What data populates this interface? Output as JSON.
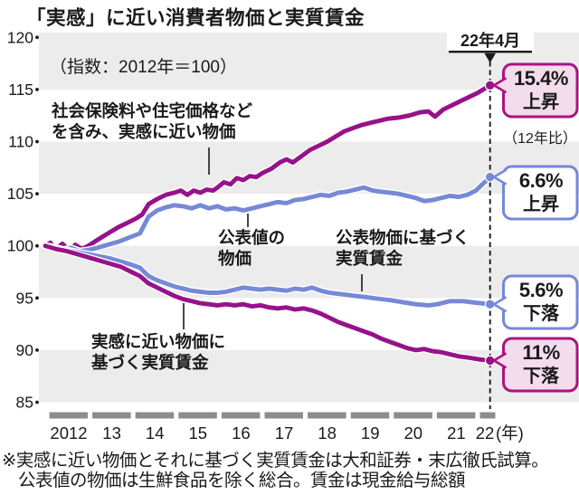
{
  "title": "「実感」に近い消費者物価と実質賃金",
  "subtitle": "（指数：2012年＝100）",
  "annotation": {
    "date_label": "22年4月",
    "compare_note": "（12年比）"
  },
  "series_labels": {
    "feel_price": {
      "line1": "社会保険料や住宅価格など",
      "line2": "を含み、実感に近い物価"
    },
    "official_price": {
      "line1": "公表値の",
      "line2": "物価"
    },
    "official_wage": {
      "line1": "公表物価に基づく",
      "line2": "実質賃金"
    },
    "feel_wage": {
      "line1": "実感に近い物価に",
      "line2": "基づく実質賃金"
    }
  },
  "callouts": [
    {
      "value": "15.4%",
      "direction": "上昇",
      "style": "pink"
    },
    {
      "value": "6.6%",
      "direction": "上昇",
      "style": "blue"
    },
    {
      "value": "5.6%",
      "direction": "下落",
      "style": "blue"
    },
    {
      "value": "11%",
      "direction": "下落",
      "style": "pink"
    }
  ],
  "footnotes": [
    "※実感に近い物価とそれに基づく実質賃金は大和証券・末広徹氏試算。",
    "公表値の物価は生鮮食品を除く総合。賃金は現金給与総額"
  ],
  "colors": {
    "magenta": "#97128a",
    "magenta_border": "#ab1480",
    "blue": "#7589d6",
    "pink_fill": "#f3dcec",
    "band_gray": "#edecec",
    "bar_gray": "#8c8c8c",
    "ink": "#1a1a1a"
  },
  "chart_data": {
    "type": "line",
    "title": "「実感」に近い消費者物価と実質賃金",
    "index_note": "指数：2012年＝100",
    "x_axis": {
      "tick_labels": [
        "2012",
        "13",
        "14",
        "15",
        "16",
        "17",
        "18",
        "19",
        "20",
        "21",
        "22"
      ],
      "unit_suffix": "(年)",
      "range_years": [
        2012,
        2022.33
      ]
    },
    "y_axis": {
      "ticks": [
        120,
        115,
        110,
        105,
        100,
        95,
        90,
        85
      ],
      "ylim": [
        85,
        120.5
      ]
    },
    "grid_bands_gray": [
      [
        115,
        120
      ],
      [
        105,
        110
      ],
      [
        95,
        100
      ],
      [
        85,
        90
      ]
    ],
    "event_line": {
      "x_year_offset": 10.33,
      "label": "22年4月"
    },
    "series": [
      {
        "id": "feel_price",
        "name": "社会保険料や住宅価格などを含み、実感に近い物価",
        "color": "magenta",
        "end_label": "15.4%上昇（12年比）",
        "points": [
          [
            0,
            100
          ],
          [
            0.12,
            100.3
          ],
          [
            0.25,
            99.7
          ],
          [
            0.4,
            100.2
          ],
          [
            0.55,
            99.6
          ],
          [
            0.7,
            100.1
          ],
          [
            0.85,
            99.7
          ],
          [
            1.0,
            100.0
          ],
          [
            1.15,
            100.4
          ],
          [
            1.3,
            100.8
          ],
          [
            1.5,
            101.3
          ],
          [
            1.7,
            101.8
          ],
          [
            1.9,
            102.2
          ],
          [
            2.1,
            102.6
          ],
          [
            2.25,
            103.0
          ],
          [
            2.4,
            104.0
          ],
          [
            2.6,
            104.5
          ],
          [
            2.8,
            104.9
          ],
          [
            3.0,
            105.1
          ],
          [
            3.15,
            105.3
          ],
          [
            3.3,
            104.9
          ],
          [
            3.45,
            105.3
          ],
          [
            3.6,
            105.1
          ],
          [
            3.75,
            105.4
          ],
          [
            3.9,
            105.3
          ],
          [
            4.0,
            105.6
          ],
          [
            4.15,
            106.1
          ],
          [
            4.3,
            105.9
          ],
          [
            4.45,
            106.5
          ],
          [
            4.6,
            106.3
          ],
          [
            4.75,
            106.7
          ],
          [
            4.9,
            106.6
          ],
          [
            5.05,
            107.0
          ],
          [
            5.25,
            107.4
          ],
          [
            5.45,
            108.0
          ],
          [
            5.6,
            108.3
          ],
          [
            5.75,
            108.0
          ],
          [
            5.95,
            108.6
          ],
          [
            6.15,
            109.2
          ],
          [
            6.35,
            109.6
          ],
          [
            6.55,
            110.0
          ],
          [
            6.75,
            110.5
          ],
          [
            6.95,
            111.0
          ],
          [
            7.15,
            111.3
          ],
          [
            7.35,
            111.6
          ],
          [
            7.55,
            111.8
          ],
          [
            7.75,
            112.0
          ],
          [
            7.95,
            112.2
          ],
          [
            8.2,
            112.3
          ],
          [
            8.45,
            112.5
          ],
          [
            8.7,
            112.8
          ],
          [
            8.9,
            112.9
          ],
          [
            9.05,
            112.4
          ],
          [
            9.25,
            113.1
          ],
          [
            9.45,
            113.5
          ],
          [
            9.65,
            113.9
          ],
          [
            9.85,
            114.3
          ],
          [
            10.05,
            114.7
          ],
          [
            10.33,
            115.4
          ]
        ]
      },
      {
        "id": "official_price",
        "name": "公表値の物価",
        "color": "blue",
        "end_label": "6.6%上昇",
        "points": [
          [
            0,
            100
          ],
          [
            0.2,
            99.9
          ],
          [
            0.4,
            99.6
          ],
          [
            0.6,
            99.8
          ],
          [
            0.8,
            99.5
          ],
          [
            1.0,
            99.6
          ],
          [
            1.2,
            99.8
          ],
          [
            1.45,
            100.1
          ],
          [
            1.7,
            100.4
          ],
          [
            1.95,
            100.8
          ],
          [
            2.2,
            101.2
          ],
          [
            2.4,
            102.8
          ],
          [
            2.6,
            103.4
          ],
          [
            2.8,
            103.7
          ],
          [
            3.0,
            103.9
          ],
          [
            3.2,
            103.8
          ],
          [
            3.4,
            103.6
          ],
          [
            3.6,
            103.9
          ],
          [
            3.8,
            103.6
          ],
          [
            4.0,
            103.8
          ],
          [
            4.2,
            103.5
          ],
          [
            4.4,
            103.6
          ],
          [
            4.6,
            103.4
          ],
          [
            4.8,
            103.6
          ],
          [
            5.0,
            103.8
          ],
          [
            5.2,
            104.0
          ],
          [
            5.4,
            104.2
          ],
          [
            5.6,
            104.1
          ],
          [
            5.8,
            104.4
          ],
          [
            6.0,
            104.5
          ],
          [
            6.2,
            104.7
          ],
          [
            6.4,
            104.9
          ],
          [
            6.6,
            104.8
          ],
          [
            6.8,
            105.1
          ],
          [
            7.0,
            105.2
          ],
          [
            7.2,
            105.4
          ],
          [
            7.4,
            105.6
          ],
          [
            7.6,
            105.3
          ],
          [
            7.8,
            105.2
          ],
          [
            8.0,
            105.1
          ],
          [
            8.2,
            105.0
          ],
          [
            8.4,
            104.8
          ],
          [
            8.6,
            104.6
          ],
          [
            8.8,
            104.3
          ],
          [
            9.0,
            104.4
          ],
          [
            9.2,
            104.6
          ],
          [
            9.4,
            104.8
          ],
          [
            9.6,
            104.7
          ],
          [
            9.8,
            104.9
          ],
          [
            10.0,
            105.3
          ],
          [
            10.15,
            105.9
          ],
          [
            10.33,
            106.6
          ]
        ]
      },
      {
        "id": "official_wage",
        "name": "公表物価に基づく実質賃金",
        "color": "blue",
        "end_label": "5.6%下落",
        "points": [
          [
            0,
            100
          ],
          [
            0.25,
            99.8
          ],
          [
            0.5,
            99.6
          ],
          [
            0.75,
            99.4
          ],
          [
            1.0,
            99.2
          ],
          [
            1.25,
            99.0
          ],
          [
            1.5,
            98.8
          ],
          [
            1.75,
            98.5
          ],
          [
            2.0,
            98.2
          ],
          [
            2.2,
            97.9
          ],
          [
            2.4,
            97.1
          ],
          [
            2.6,
            96.7
          ],
          [
            2.8,
            96.4
          ],
          [
            3.0,
            96.1
          ],
          [
            3.2,
            95.9
          ],
          [
            3.4,
            95.7
          ],
          [
            3.6,
            95.6
          ],
          [
            3.8,
            95.5
          ],
          [
            4.0,
            95.5
          ],
          [
            4.2,
            95.6
          ],
          [
            4.4,
            95.8
          ],
          [
            4.6,
            96.0
          ],
          [
            4.8,
            95.9
          ],
          [
            5.0,
            95.8
          ],
          [
            5.2,
            95.9
          ],
          [
            5.4,
            95.8
          ],
          [
            5.6,
            95.7
          ],
          [
            5.8,
            95.9
          ],
          [
            6.0,
            95.8
          ],
          [
            6.2,
            96.0
          ],
          [
            6.4,
            95.7
          ],
          [
            6.6,
            95.5
          ],
          [
            6.8,
            95.4
          ],
          [
            7.0,
            95.3
          ],
          [
            7.2,
            95.2
          ],
          [
            7.4,
            95.1
          ],
          [
            7.6,
            95.0
          ],
          [
            7.8,
            94.9
          ],
          [
            8.0,
            94.8
          ],
          [
            8.3,
            94.6
          ],
          [
            8.6,
            94.4
          ],
          [
            8.9,
            94.3
          ],
          [
            9.1,
            94.4
          ],
          [
            9.4,
            94.7
          ],
          [
            9.7,
            94.7
          ],
          [
            9.9,
            94.6
          ],
          [
            10.1,
            94.5
          ],
          [
            10.33,
            94.4
          ]
        ]
      },
      {
        "id": "feel_wage",
        "name": "実感に近い物価に基づく実質賃金",
        "color": "magenta",
        "end_label": "11%下落",
        "points": [
          [
            0,
            100
          ],
          [
            0.25,
            99.7
          ],
          [
            0.5,
            99.5
          ],
          [
            0.75,
            99.2
          ],
          [
            1.0,
            98.9
          ],
          [
            1.25,
            98.6
          ],
          [
            1.5,
            98.3
          ],
          [
            1.75,
            98.0
          ],
          [
            2.0,
            97.5
          ],
          [
            2.2,
            97.1
          ],
          [
            2.4,
            96.4
          ],
          [
            2.6,
            96.0
          ],
          [
            2.8,
            95.6
          ],
          [
            3.0,
            95.2
          ],
          [
            3.2,
            94.9
          ],
          [
            3.4,
            94.7
          ],
          [
            3.6,
            94.5
          ],
          [
            3.8,
            94.4
          ],
          [
            4.0,
            94.3
          ],
          [
            4.2,
            94.4
          ],
          [
            4.4,
            94.3
          ],
          [
            4.6,
            94.4
          ],
          [
            4.8,
            94.2
          ],
          [
            5.0,
            94.3
          ],
          [
            5.2,
            94.1
          ],
          [
            5.4,
            94.0
          ],
          [
            5.6,
            94.1
          ],
          [
            5.8,
            93.9
          ],
          [
            6.0,
            94.0
          ],
          [
            6.2,
            93.8
          ],
          [
            6.4,
            93.5
          ],
          [
            6.6,
            93.1
          ],
          [
            6.8,
            92.7
          ],
          [
            7.0,
            92.4
          ],
          [
            7.2,
            92.1
          ],
          [
            7.4,
            91.8
          ],
          [
            7.6,
            91.5
          ],
          [
            7.8,
            91.1
          ],
          [
            8.0,
            90.8
          ],
          [
            8.2,
            90.5
          ],
          [
            8.4,
            90.2
          ],
          [
            8.6,
            90.0
          ],
          [
            8.8,
            90.1
          ],
          [
            9.0,
            89.9
          ],
          [
            9.2,
            89.8
          ],
          [
            9.4,
            89.6
          ],
          [
            9.6,
            89.4
          ],
          [
            9.8,
            89.3
          ],
          [
            10.1,
            89.1
          ],
          [
            10.33,
            89.0
          ]
        ]
      }
    ]
  }
}
